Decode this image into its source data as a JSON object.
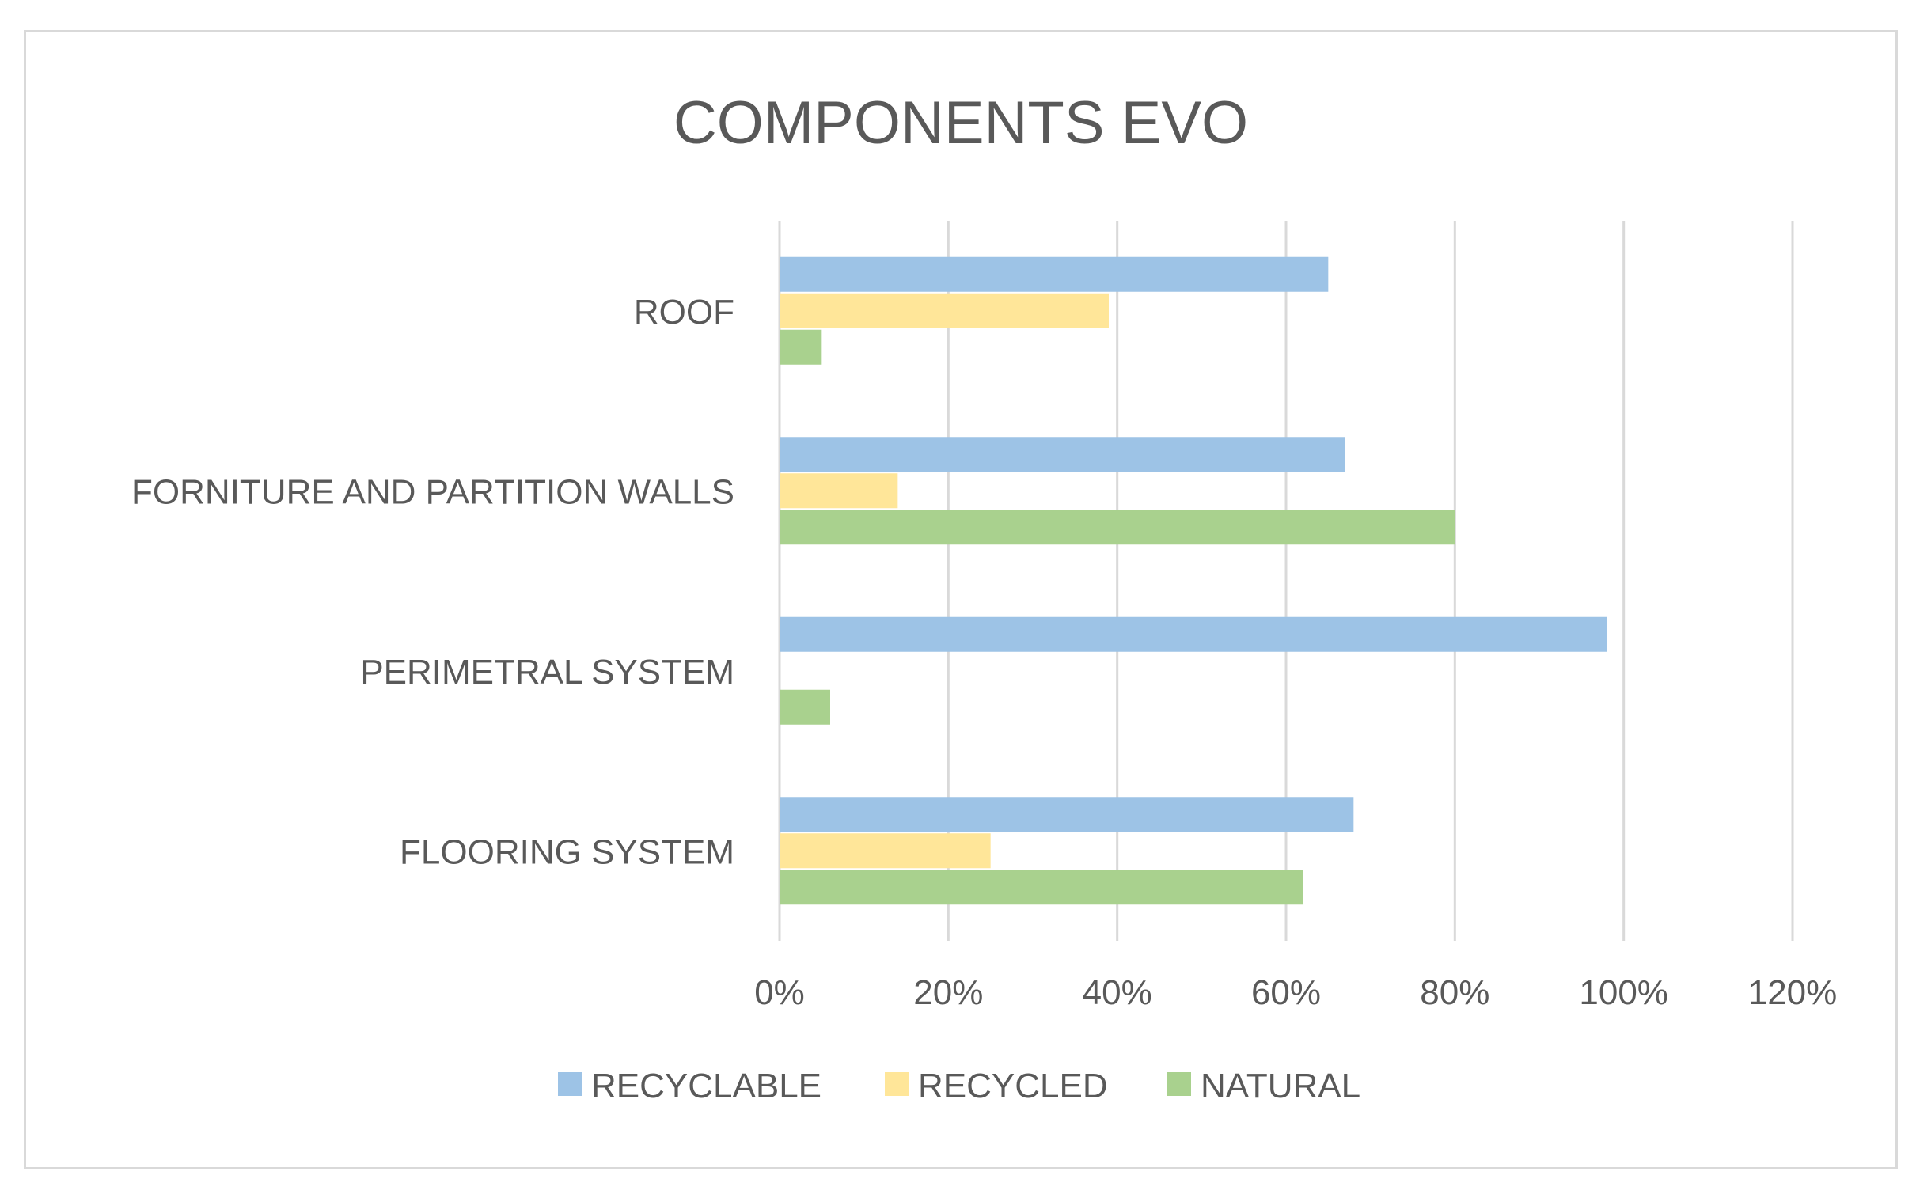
{
  "chart_data": {
    "type": "bar",
    "orientation": "horizontal",
    "title": "COMPONENTS EVO",
    "categories": [
      "ROOF",
      "FORNITURE AND PARTITION WALLS",
      "PERIMETRAL SYSTEM",
      "FLOORING SYSTEM"
    ],
    "series": [
      {
        "name": "RECYCLABLE",
        "color": "#9dc3e6",
        "values": [
          0.65,
          0.67,
          0.98,
          0.68
        ]
      },
      {
        "name": "RECYCLED",
        "color": "#ffe699",
        "values": [
          0.39,
          0.14,
          0,
          0.25
        ]
      },
      {
        "name": "NATURAL",
        "color": "#a9d18e",
        "values": [
          0.05,
          0.8,
          0.06,
          0.62
        ]
      }
    ],
    "x_ticks": [
      "0%",
      "20%",
      "40%",
      "60%",
      "80%",
      "100%",
      "120%"
    ],
    "xlim": [
      0,
      1.2
    ],
    "grid": "vertical",
    "legend_position": "bottom"
  }
}
